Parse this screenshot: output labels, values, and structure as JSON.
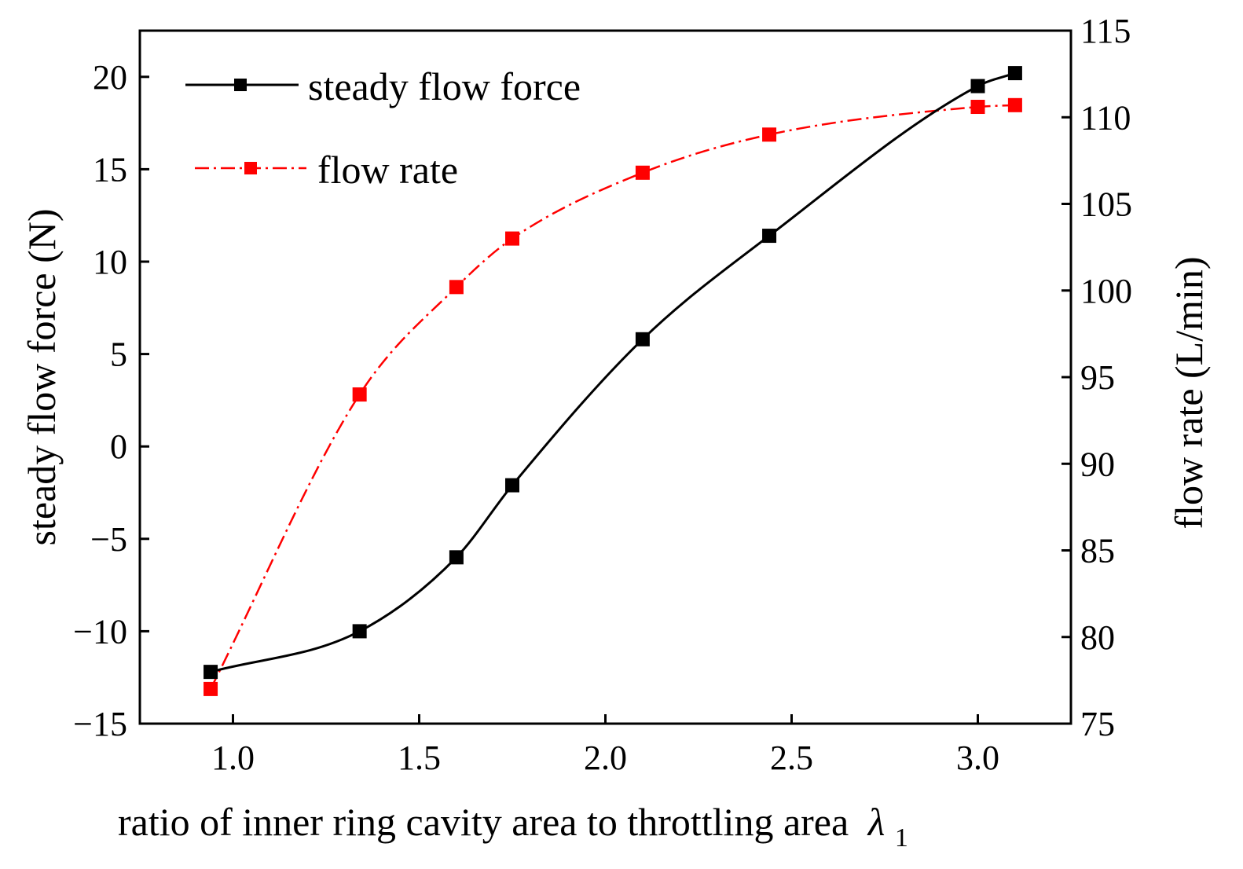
{
  "chart_data": {
    "type": "line",
    "xlabel": "ratio of inner ring cavity area to throttling area",
    "xlabel_symbol": "λ",
    "xlabel_subscript": "1",
    "ylabel_left": "steady flow force (N)",
    "ylabel_right": "flow rate (L/min)",
    "xlim": [
      0.75,
      3.25
    ],
    "ylim_left": [
      -15,
      22.5
    ],
    "ylim_right": [
      75,
      115
    ],
    "xticks": [
      1.0,
      1.5,
      2.0,
      2.5,
      3.0
    ],
    "xtick_labels": [
      "1.0",
      "1.5",
      "2.0",
      "2.5",
      "3.0"
    ],
    "yticks_left": [
      -15,
      -10,
      -5,
      0,
      5,
      10,
      15,
      20
    ],
    "ytick_labels_left": [
      "−15",
      "−10",
      "−5",
      "0",
      "5",
      "10",
      "15",
      "20"
    ],
    "yticks_right": [
      75,
      80,
      85,
      90,
      95,
      100,
      105,
      110,
      115
    ],
    "ytick_labels_right": [
      "75",
      "80",
      "85",
      "90",
      "95",
      "100",
      "105",
      "110",
      "115"
    ],
    "legend_position": "top-left",
    "series": [
      {
        "name": "steady flow force",
        "axis": "left",
        "color": "#000000",
        "line_style": "solid",
        "marker": "square",
        "x": [
          0.94,
          1.34,
          1.6,
          1.75,
          2.1,
          2.44,
          3.0,
          3.1
        ],
        "y": [
          -12.2,
          -10.0,
          -6.0,
          -2.1,
          5.8,
          11.4,
          19.5,
          20.2
        ]
      },
      {
        "name": "flow rate",
        "axis": "right",
        "color": "#ff0000",
        "line_style": "dash-dot",
        "marker": "square",
        "x": [
          0.94,
          1.34,
          1.6,
          1.75,
          2.1,
          2.44,
          3.0,
          3.1
        ],
        "y": [
          77.0,
          94.0,
          100.2,
          103.0,
          106.8,
          109.0,
          110.6,
          110.7
        ]
      }
    ]
  }
}
